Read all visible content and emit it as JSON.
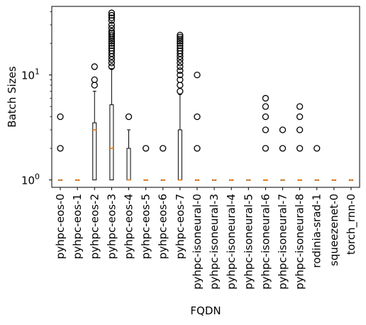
{
  "chart_data": {
    "type": "boxplot",
    "title": "",
    "xlabel": "FQDN",
    "ylabel": "Batch Sizes",
    "yscale": "log",
    "ylim": [
      0.85,
      45
    ],
    "yticks": [
      {
        "value": 1,
        "base": "10",
        "exp": "0"
      },
      {
        "value": 10,
        "base": "10",
        "exp": "1"
      }
    ],
    "grid": false,
    "colors": {
      "box": "#000000",
      "median": "#ff7f0e",
      "outlier": "#000000"
    },
    "categories": [
      "pyhpc-eos-0",
      "pyhpc-eos-1",
      "pyhpc-eos-2",
      "pyhpc-eos-3",
      "pyhpc-eos-4",
      "pyhpc-eos-5",
      "pyhpc-eos-6",
      "pyhpc-eos-7",
      "pyhpc-isoneural-0",
      "pyhpc-isoneural-3",
      "pyhpc-isoneural-4",
      "pyhpc-isoneural-5",
      "pyhpc-isoneural-6",
      "pyhpc-isoneural-7",
      "pyhpc-isoneural-8",
      "rodinia-srad-1",
      "squeezenet-0",
      "torch_rnn-0"
    ],
    "boxes": [
      {
        "q1": 1,
        "median": 1,
        "q3": 1,
        "whisker_low": 1,
        "whisker_high": 1,
        "outliers": [
          2,
          4
        ]
      },
      {
        "q1": 1,
        "median": 1,
        "q3": 1,
        "whisker_low": 1,
        "whisker_high": 1,
        "outliers": []
      },
      {
        "q1": 1,
        "median": 3,
        "q3": 3.5,
        "whisker_low": 1,
        "whisker_high": 7,
        "outliers": [
          8,
          9,
          12
        ]
      },
      {
        "q1": 1,
        "median": 2,
        "q3": 5.2,
        "whisker_low": 1,
        "whisker_high": 11.5,
        "outliers": [
          12,
          13,
          14,
          15,
          16,
          17,
          18,
          19,
          20,
          21,
          22,
          23,
          24,
          25,
          26,
          28,
          30,
          33,
          35,
          37,
          39
        ]
      },
      {
        "q1": 1,
        "median": 1,
        "q3": 2,
        "whisker_low": 1,
        "whisker_high": 3,
        "outliers": [
          4
        ]
      },
      {
        "q1": 1,
        "median": 1,
        "q3": 1,
        "whisker_low": 1,
        "whisker_high": 1,
        "outliers": [
          2
        ]
      },
      {
        "q1": 1,
        "median": 1,
        "q3": 1,
        "whisker_low": 1,
        "whisker_high": 1,
        "outliers": [
          2
        ]
      },
      {
        "q1": 1,
        "median": 1,
        "q3": 3,
        "whisker_low": 1,
        "whisker_high": 6.5,
        "outliers": [
          7,
          8,
          9,
          10,
          11,
          12,
          13,
          14,
          15,
          16,
          17,
          18,
          19,
          20,
          21,
          22,
          23,
          24
        ]
      },
      {
        "q1": 1,
        "median": 1,
        "q3": 1,
        "whisker_low": 1,
        "whisker_high": 1,
        "outliers": [
          2,
          4,
          10
        ]
      },
      {
        "q1": 1,
        "median": 1,
        "q3": 1,
        "whisker_low": 1,
        "whisker_high": 1,
        "outliers": []
      },
      {
        "q1": 1,
        "median": 1,
        "q3": 1,
        "whisker_low": 1,
        "whisker_high": 1,
        "outliers": []
      },
      {
        "q1": 1,
        "median": 1,
        "q3": 1,
        "whisker_low": 1,
        "whisker_high": 1,
        "outliers": []
      },
      {
        "q1": 1,
        "median": 1,
        "q3": 1,
        "whisker_low": 1,
        "whisker_high": 1,
        "outliers": [
          2,
          3,
          4,
          5,
          6
        ]
      },
      {
        "q1": 1,
        "median": 1,
        "q3": 1,
        "whisker_low": 1,
        "whisker_high": 1,
        "outliers": [
          2,
          3
        ]
      },
      {
        "q1": 1,
        "median": 1,
        "q3": 1,
        "whisker_low": 1,
        "whisker_high": 1,
        "outliers": [
          2,
          3,
          4,
          5
        ]
      },
      {
        "q1": 1,
        "median": 1,
        "q3": 1,
        "whisker_low": 1,
        "whisker_high": 1,
        "outliers": [
          2
        ]
      },
      {
        "q1": 1,
        "median": 1,
        "q3": 1,
        "whisker_low": 1,
        "whisker_high": 1,
        "outliers": []
      },
      {
        "q1": 1,
        "median": 1,
        "q3": 1,
        "whisker_low": 1,
        "whisker_high": 1,
        "outliers": []
      }
    ]
  }
}
